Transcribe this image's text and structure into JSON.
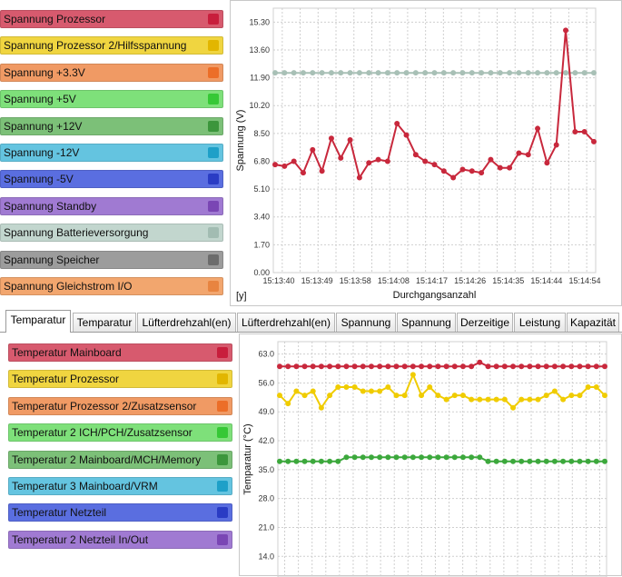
{
  "voltage_panel": {
    "buttons": [
      {
        "label": "Spannung Prozessor",
        "color": "#d75a6e",
        "square": "#c81e3c"
      },
      {
        "label": "Spannung Prozessor 2/Hilfsspannung",
        "color": "#f0d540",
        "square": "#e2b600"
      },
      {
        "label": "Spannung +3.3V",
        "color": "#f09a64",
        "square": "#ec6e28"
      },
      {
        "label": "Spannung +5V",
        "color": "#7ee07a",
        "square": "#36c836"
      },
      {
        "label": "Spannung +12V",
        "color": "#7cc078",
        "square": "#3c963c"
      },
      {
        "label": "Spannung -12V",
        "color": "#64c4e0",
        "square": "#1ea0c8"
      },
      {
        "label": "Spannung -5V",
        "color": "#5a6ee0",
        "square": "#2a3cc4"
      },
      {
        "label": "Spannung Standby",
        "color": "#a07ad2",
        "square": "#7a46b4"
      },
      {
        "label": "Spannung Batterieversorgung",
        "color": "#c2d6ce",
        "square": "#a2bcb2"
      },
      {
        "label": "Spannung Speicher",
        "color": "#9c9c9c",
        "square": "#6c6c6c"
      },
      {
        "label": "Spannung Gleichstrom I/O",
        "color": "#f2a66e",
        "square": "#e88440"
      }
    ]
  },
  "temperature_panel": {
    "buttons": [
      {
        "label": "Temperatur Mainboard",
        "color": "#d75a6e",
        "square": "#c81e3c"
      },
      {
        "label": "Temperatur Prozessor",
        "color": "#f0d540",
        "square": "#e2b600"
      },
      {
        "label": "Temperatur Prozessor 2/Zusatzsensor",
        "color": "#f09a64",
        "square": "#ec6e28"
      },
      {
        "label": "Temperatur 2 ICH/PCH/Zusatzsensor",
        "color": "#7ee07a",
        "square": "#36c836"
      },
      {
        "label": "Temperatur 2 Mainboard/MCH/Memory",
        "color": "#7cc078",
        "square": "#3c963c"
      },
      {
        "label": "Temperatur 3 Mainboard/VRM",
        "color": "#64c4e0",
        "square": "#1ea0c8"
      },
      {
        "label": "Temperatur Netzteil",
        "color": "#5a6ee0",
        "square": "#2a3cc4"
      },
      {
        "label": "Temperatur 2 Netzteil In/Out",
        "color": "#a07ad2",
        "square": "#7a46b4"
      }
    ]
  },
  "tabs": [
    {
      "label": "Temparatur",
      "active": true
    },
    {
      "label": "Temparatur",
      "active": false
    },
    {
      "label": "Lüfterdrehzahl(en)",
      "active": false
    },
    {
      "label": "Lüfterdrehzahl(en)",
      "active": false
    },
    {
      "label": "Spannung",
      "active": false
    },
    {
      "label": "Spannung",
      "active": false
    },
    {
      "label": "Derzeitige",
      "active": false
    },
    {
      "label": "Leistung",
      "active": false
    },
    {
      "label": "Kapazität",
      "active": false
    }
  ],
  "chart_data": [
    {
      "type": "line",
      "title": "",
      "xlabel": "Durchgangsanzahl",
      "ylabel": "Spannung (V)",
      "corner_label": "[y]",
      "ylim": [
        0,
        16.15
      ],
      "yticks": [
        0.0,
        1.7,
        3.4,
        5.1,
        6.8,
        8.5,
        10.2,
        11.9,
        13.6,
        15.3
      ],
      "ytick_labels": [
        "0.00",
        "1.70",
        "3.40",
        "5.10",
        "6.80",
        "8.50",
        "10.20",
        "11.90",
        "13.60",
        "15.30"
      ],
      "xtick_labels": [
        "15:13:40",
        "15:13:49",
        "15:13:58",
        "15:14:08",
        "15:14:17",
        "15:14:26",
        "15:14:35",
        "15:14:44",
        "15:14:54"
      ],
      "grid": true,
      "series": [
        {
          "color": "#a8c0b6",
          "values": [
            12.2,
            12.2,
            12.2,
            12.2,
            12.2,
            12.2,
            12.2,
            12.2,
            12.2,
            12.2,
            12.2,
            12.2,
            12.2,
            12.2,
            12.2,
            12.2,
            12.2,
            12.2,
            12.2,
            12.2,
            12.2,
            12.2,
            12.2,
            12.2,
            12.2,
            12.2,
            12.2,
            12.2,
            12.2,
            12.2,
            12.2,
            12.2,
            12.2,
            12.2,
            12.2
          ]
        },
        {
          "color": "#c8283c",
          "values": [
            6.6,
            6.5,
            6.8,
            6.1,
            7.5,
            6.2,
            8.2,
            7.0,
            8.1,
            5.8,
            6.7,
            6.9,
            6.8,
            9.1,
            8.4,
            7.2,
            6.8,
            6.6,
            6.2,
            5.8,
            6.3,
            6.2,
            6.1,
            6.9,
            6.4,
            6.4,
            7.3,
            7.2,
            8.8,
            6.7,
            7.8,
            14.8,
            8.6,
            8.6,
            8.0
          ]
        }
      ]
    },
    {
      "type": "line",
      "title": "",
      "xlabel": "",
      "ylabel": "Temparatur (°C)",
      "ylim": [
        9.0,
        66.0
      ],
      "yticks": [
        14.0,
        21.0,
        28.0,
        35.0,
        42.0,
        49.0,
        56.0,
        63.0
      ],
      "ytick_labels": [
        "14.0",
        "21.0",
        "28.0",
        "35.0",
        "42.0",
        "49.0",
        "56.0",
        "63.0"
      ],
      "grid": true,
      "series": [
        {
          "color": "#c8283c",
          "values": [
            60,
            60,
            60,
            60,
            60,
            60,
            60,
            60,
            60,
            60,
            60,
            60,
            60,
            60,
            60,
            60,
            60,
            60,
            60,
            60,
            60,
            60,
            60,
            60,
            61,
            60,
            60,
            60,
            60,
            60,
            60,
            60,
            60,
            60,
            60,
            60,
            60,
            60,
            60,
            60
          ]
        },
        {
          "color": "#f0cc00",
          "values": [
            53,
            51,
            54,
            53,
            54,
            50,
            53,
            55,
            55,
            55,
            54,
            54,
            54,
            55,
            53,
            53,
            58,
            53,
            55,
            53,
            52,
            53,
            53,
            52,
            52,
            52,
            52,
            52,
            50,
            52,
            52,
            52,
            53,
            54,
            52,
            53,
            53,
            55,
            55,
            53
          ]
        },
        {
          "color": "#3ca83c",
          "values": [
            37,
            37,
            37,
            37,
            37,
            37,
            37,
            37,
            38,
            38,
            38,
            38,
            38,
            38,
            38,
            38,
            38,
            38,
            38,
            38,
            38,
            38,
            38,
            38,
            38,
            37,
            37,
            37,
            37,
            37,
            37,
            37,
            37,
            37,
            37,
            37,
            37,
            37,
            37,
            37
          ]
        }
      ]
    }
  ]
}
